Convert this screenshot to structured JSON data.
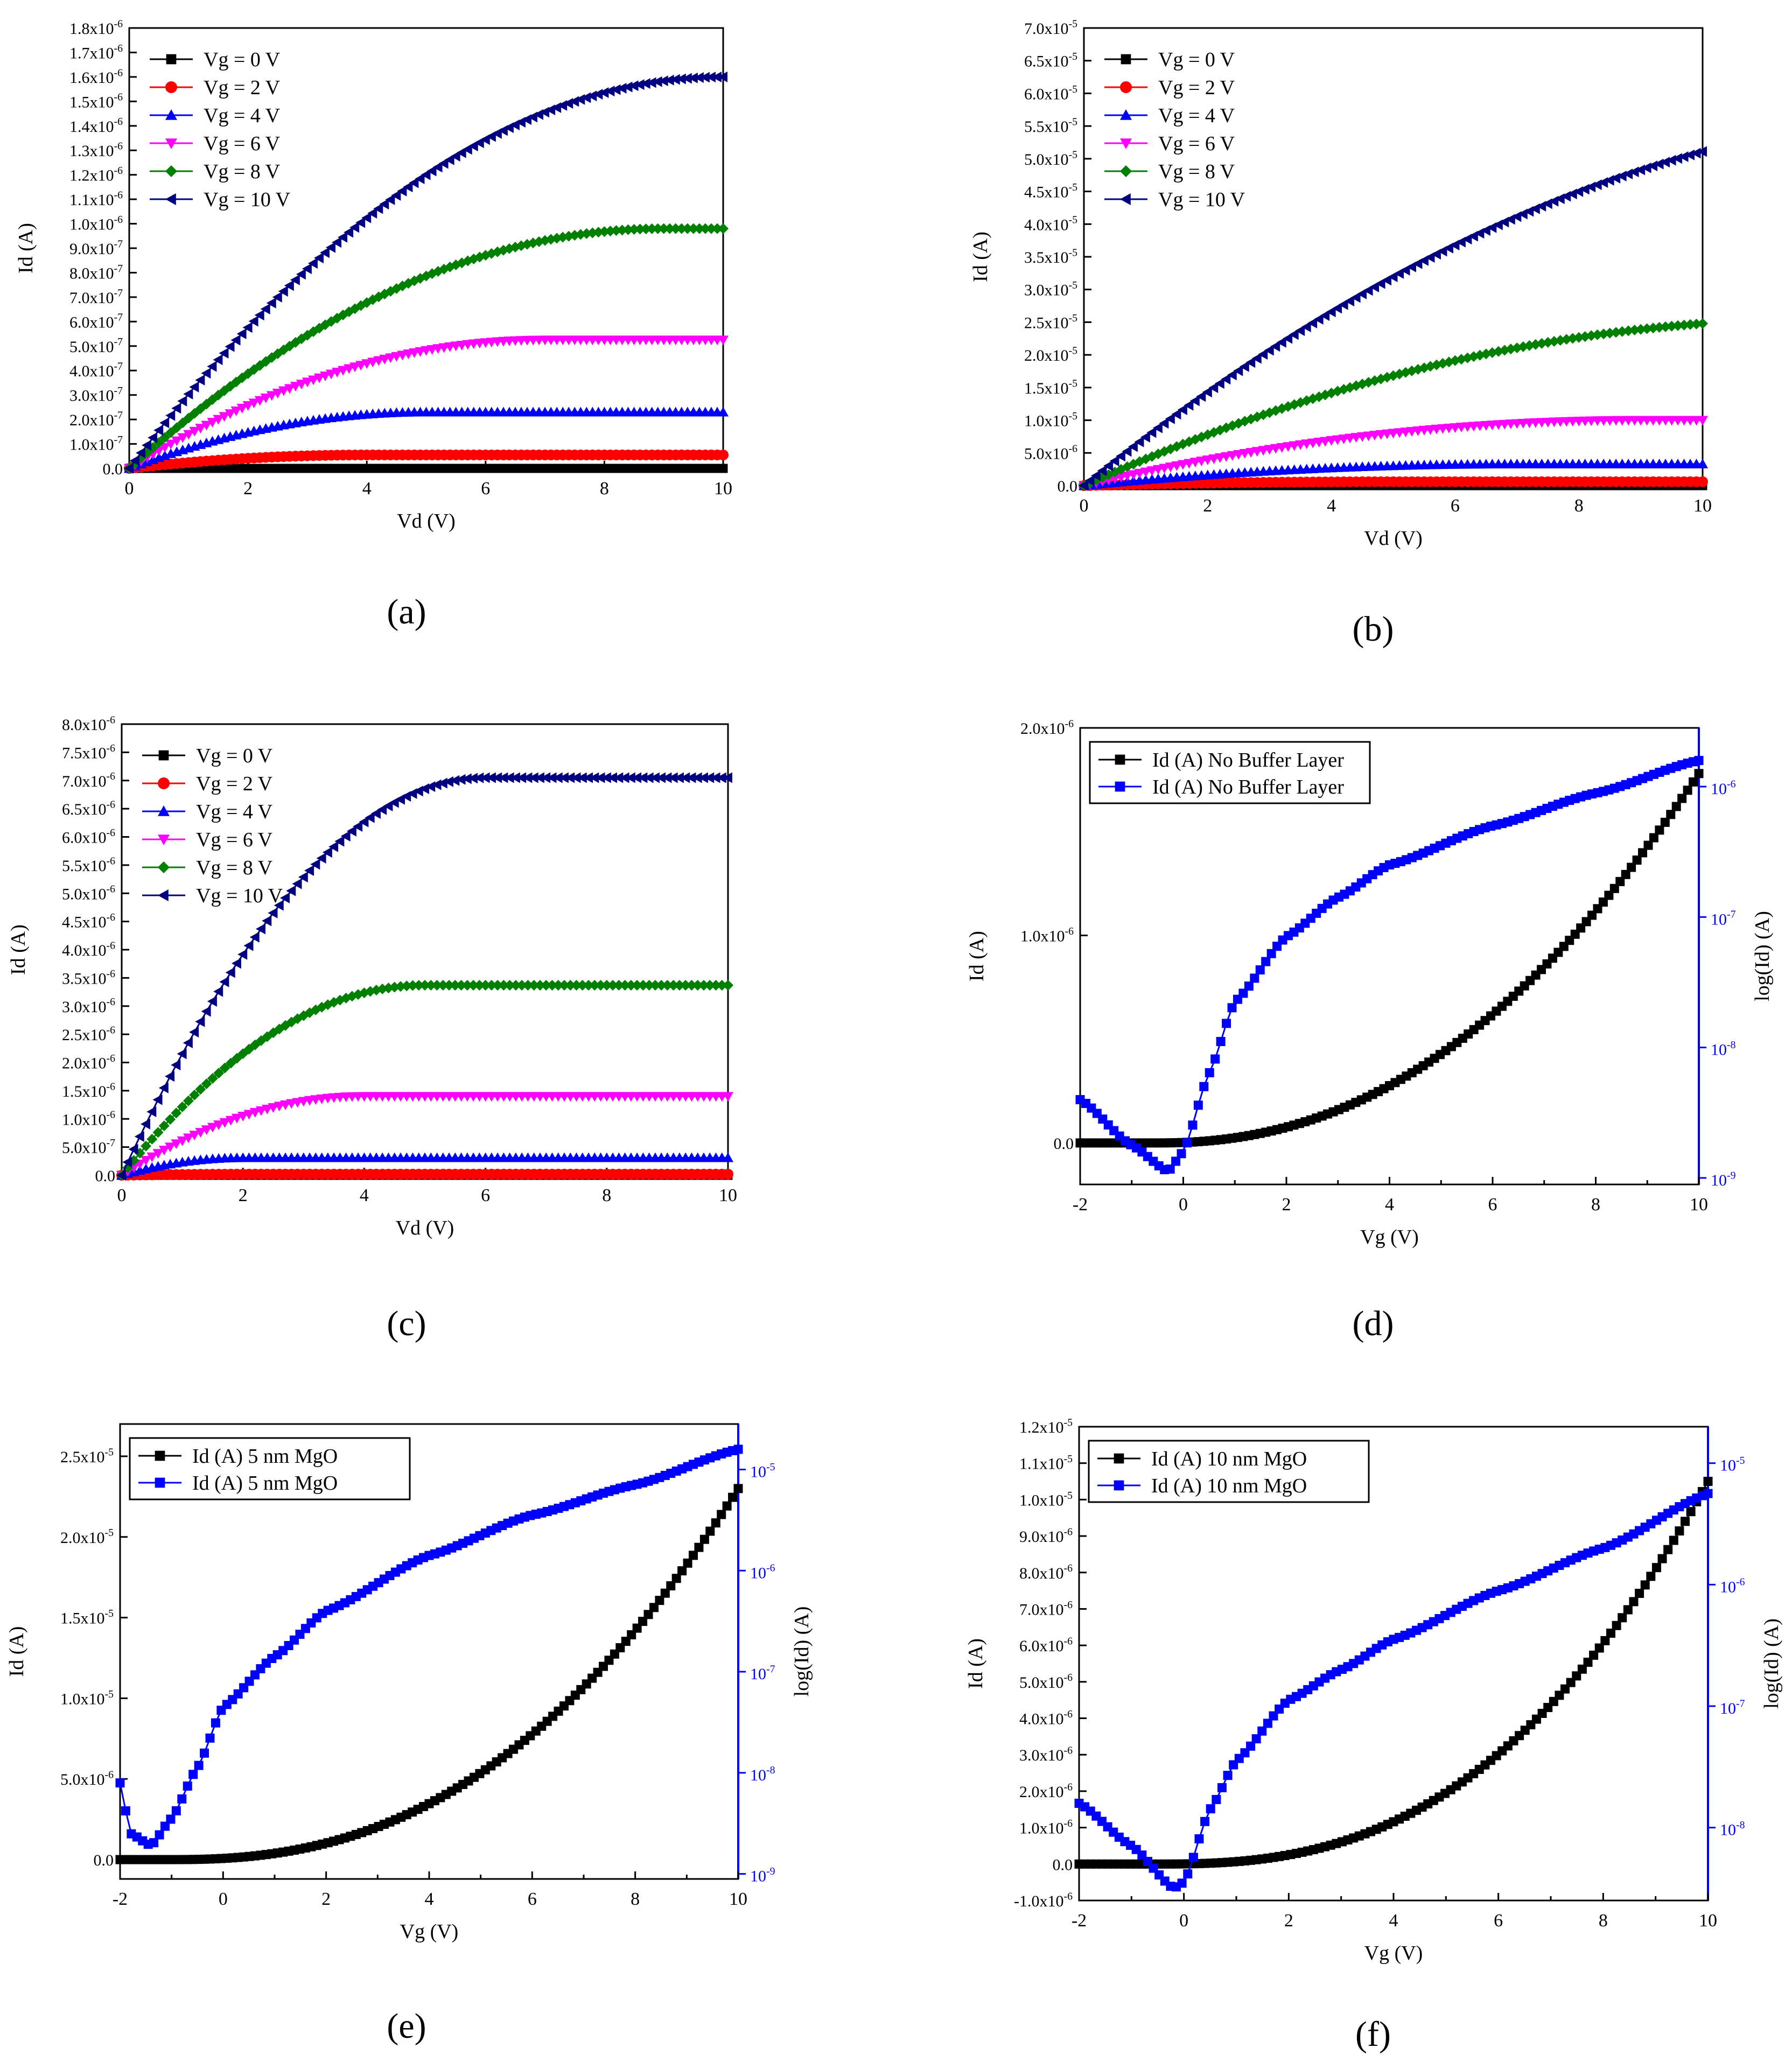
{
  "figure": {
    "panel_captions": [
      "(a)",
      "(b)",
      "(c)",
      "(d)",
      "(e)",
      "(f)"
    ]
  },
  "chart_data": [
    {
      "panel": "(a)",
      "type": "line",
      "xlabel": "Vd (V)",
      "ylabel": "Id (A)",
      "xlim": [
        0,
        10
      ],
      "ylim": [
        0,
        1.8e-06
      ],
      "x_ticks": [
        0,
        2,
        4,
        6,
        8,
        10
      ],
      "y_ticks": {
        "step": 1e-07,
        "count": 18
      },
      "y_tick_labels": [
        "0.0",
        "1.0x10^-7",
        "2.0x10^-7",
        "3.0x10^-7",
        "4.0x10^-7",
        "5.0x10^-7",
        "6.0x10^-7",
        "7.0x10^-7",
        "8.0x10^-7",
        "9.0x10^-7",
        "1.0x10^-6",
        "1.1x10^-6",
        "1.2x10^-6",
        "1.3x10^-6",
        "1.4x10^-6",
        "1.5x10^-6",
        "1.6x10^-6",
        "1.7x10^-6",
        "1.8x10^-6"
      ],
      "legend": "top-left",
      "series": [
        {
          "name": "Vg = 0 V",
          "color": "#000000",
          "marker": "square",
          "vsat": 1,
          "isat": 0
        },
        {
          "name": "Vg = 2 V",
          "color": "#ff0000",
          "marker": "circle",
          "vsat": 4,
          "isat": 5.5e-08
        },
        {
          "name": "Vg = 4 V",
          "color": "#0000ff",
          "marker": "triangle-up",
          "vsat": 5,
          "isat": 2.3e-07
        },
        {
          "name": "Vg = 6 V",
          "color": "#ff00ff",
          "marker": "triangle-down",
          "vsat": 7,
          "isat": 5.25e-07
        },
        {
          "name": "Vg = 8 V",
          "color": "#008000",
          "marker": "diamond",
          "vsat": 9,
          "isat": 9.8e-07
        },
        {
          "name": "Vg = 10 V",
          "color": "#000080",
          "marker": "triangle-left",
          "vsat": 10,
          "isat": 1.6e-06
        }
      ]
    },
    {
      "panel": "(b)",
      "type": "line",
      "xlabel": "Vd (V)",
      "ylabel": "Id (A)",
      "xlim": [
        0,
        10
      ],
      "ylim": [
        0,
        7e-05
      ],
      "x_ticks": [
        0,
        2,
        4,
        6,
        8,
        10
      ],
      "y_ticks": {
        "step": 5e-06,
        "count": 14
      },
      "y_tick_labels": [
        "0.0",
        "5.0x10^-6",
        "1.0x10^-5",
        "1.5x10^-5",
        "2.0x10^-5",
        "2.5x10^-5",
        "3.0x10^-5",
        "3.5x10^-5",
        "4.0x10^-5",
        "4.5x10^-5",
        "5.0x10^-5",
        "5.5x10^-5",
        "6.0x10^-5",
        "6.5x10^-5",
        "7.0x10^-5"
      ],
      "legend": "top-left",
      "series": [
        {
          "name": "Vg = 0 V",
          "color": "#000000",
          "marker": "square",
          "vsat": 1,
          "isat": 0
        },
        {
          "name": "Vg = 2 V",
          "color": "#ff0000",
          "marker": "circle",
          "vsat": 5,
          "isat": 6e-07
        },
        {
          "name": "Vg = 4 V",
          "color": "#0000ff",
          "marker": "triangle-up",
          "vsat": 7,
          "isat": 3.3e-06
        },
        {
          "name": "Vg = 6 V",
          "color": "#ff00ff",
          "marker": "triangle-down",
          "vsat": 9,
          "isat": 1e-05
        },
        {
          "name": "Vg = 8 V",
          "color": "#008000",
          "marker": "diamond",
          "vsat": 12,
          "isat": 2.55e-05
        },
        {
          "name": "Vg = 10 V",
          "color": "#000080",
          "marker": "triangle-left",
          "vsat": 15,
          "isat": 5.75e-05
        }
      ]
    },
    {
      "panel": "(c)",
      "type": "line",
      "xlabel": "Vd (V)",
      "ylabel": "Id (A)",
      "xlim": [
        0,
        10
      ],
      "ylim": [
        0,
        8e-06
      ],
      "x_ticks": [
        0,
        2,
        4,
        6,
        8,
        10
      ],
      "y_ticks": {
        "step": 5e-07,
        "count": 16
      },
      "y_tick_labels": [
        "0.0",
        "5.0x10^-7",
        "1.0x10^-6",
        "1.5x10^-6",
        "2.0x10^-6",
        "2.5x10^-6",
        "3.0x10^-6",
        "3.5x10^-6",
        "4.0x10^-6",
        "4.5x10^-6",
        "5.0x10^-6",
        "5.5x10^-6",
        "6.0x10^-6",
        "6.5x10^-6",
        "7.0x10^-6",
        "7.5x10^-6",
        "8.0x10^-6"
      ],
      "legend": "top-left",
      "series": [
        {
          "name": "Vg = 0 V",
          "color": "#000000",
          "marker": "square",
          "vsat": 1,
          "isat": 0
        },
        {
          "name": "Vg = 2 V",
          "color": "#ff0000",
          "marker": "circle",
          "vsat": 2,
          "isat": 2e-08
        },
        {
          "name": "Vg = 4 V",
          "color": "#0000ff",
          "marker": "triangle-up",
          "vsat": 2,
          "isat": 3.1e-07
        },
        {
          "name": "Vg = 6 V",
          "color": "#ff00ff",
          "marker": "triangle-down",
          "vsat": 4,
          "isat": 1.4e-06
        },
        {
          "name": "Vg = 8 V",
          "color": "#008000",
          "marker": "diamond",
          "vsat": 5,
          "isat": 3.37e-06
        },
        {
          "name": "Vg = 10 V",
          "color": "#000080",
          "marker": "triangle-left",
          "vsat": 6,
          "isat": 7.05e-06
        }
      ]
    },
    {
      "panel": "(d)",
      "type": "line",
      "xlabel": "Vg (V)",
      "ylabel": "Id (A)",
      "ylabel_right": "log(Id) (A)",
      "xlim": [
        -2,
        10
      ],
      "ylim": [
        -2e-07,
        2e-06
      ],
      "x_ticks": [
        -2,
        0,
        2,
        4,
        6,
        8,
        10
      ],
      "y_tick_labels": [
        "0.0",
        "1.0x10^-6",
        "2.0x10^-6"
      ],
      "y_tick_values": [
        0,
        1e-06,
        2e-06
      ],
      "ylim_right_log10": [
        -9.05,
        -5.55
      ],
      "y_right_tick_labels": [
        "10^-9",
        "10^-8",
        "10^-7",
        "10^-6"
      ],
      "legend": "top-left",
      "series": [
        {
          "name": "Id (A) No Buffer Layer",
          "color": "#000000",
          "marker": "square",
          "axis": "left",
          "vth": -0.5,
          "imax": 1.78e-06,
          "exp": 2.2
        },
        {
          "name": "Id (A) No Buffer Layer",
          "color": "#0000ff",
          "marker": "square",
          "axis": "right",
          "points": [
            [
              -2,
              -8.4
            ],
            [
              -1,
              -8.75
            ],
            [
              -0.3,
              -8.95
            ],
            [
              0,
              -8.8
            ],
            [
              0.5,
              -8.2
            ],
            [
              1,
              -7.65
            ],
            [
              2,
              -7.15
            ],
            [
              3,
              -6.85
            ],
            [
              4,
              -6.6
            ],
            [
              6,
              -6.3
            ],
            [
              8,
              -6.05
            ],
            [
              10,
              -5.8
            ]
          ]
        }
      ]
    },
    {
      "panel": "(e)",
      "type": "line",
      "xlabel": "Vg (V)",
      "ylabel": "Id (A)",
      "ylabel_right": "log(Id) (A)",
      "xlim": [
        -2,
        10
      ],
      "ylim": [
        -1.2e-06,
        2.7e-05
      ],
      "x_ticks": [
        -2,
        0,
        2,
        4,
        6,
        8,
        10
      ],
      "y_tick_labels": [
        "0.0",
        "5.0x10^-6",
        "1.0x10^-5",
        "1.5x10^-5",
        "2.0x10^-5",
        "2.5x10^-5"
      ],
      "y_tick_values": [
        0,
        5e-06,
        1e-05,
        1.5e-05,
        2e-05,
        2.5e-05
      ],
      "ylim_right_log10": [
        -9.05,
        -4.55
      ],
      "y_right_tick_labels": [
        "10^-9",
        "10^-8",
        "10^-7",
        "10^-6",
        "10^-5"
      ],
      "legend": "top-left",
      "series": [
        {
          "name": "Id (A) 5 nm MgO",
          "color": "#000000",
          "marker": "square",
          "axis": "left",
          "vth": -1.0,
          "imax": 2.3e-05,
          "exp": 2.4
        },
        {
          "name": "Id (A) 5 nm MgO",
          "color": "#0000ff",
          "marker": "square",
          "axis": "right",
          "points": [
            [
              -2,
              -8.1
            ],
            [
              -1.8,
              -8.6
            ],
            [
              -1.4,
              -8.72
            ],
            [
              -1.0,
              -8.45
            ],
            [
              -0.5,
              -7.95
            ],
            [
              0,
              -7.35
            ],
            [
              1,
              -6.85
            ],
            [
              2,
              -6.4
            ],
            [
              4,
              -5.85
            ],
            [
              6,
              -5.45
            ],
            [
              8,
              -5.15
            ],
            [
              10,
              -4.8
            ]
          ]
        }
      ]
    },
    {
      "panel": "(f)",
      "type": "line",
      "xlabel": "Vg (V)",
      "ylabel": "Id (A)",
      "ylabel_right": "log(Id) (A)",
      "xlim": [
        -2,
        10
      ],
      "ylim": [
        -1e-06,
        1.2e-05
      ],
      "x_ticks": [
        -2,
        0,
        2,
        4,
        6,
        8,
        10
      ],
      "y_ticks": {
        "step": 1e-06,
        "count": 13
      },
      "y_tick_labels": [
        "-1.0x10^-6",
        "0.0",
        "1.0x10^-6",
        "2.0x10^-6",
        "3.0x10^-6",
        "4.0x10^-6",
        "5.0x10^-6",
        "6.0x10^-6",
        "7.0x10^-6",
        "8.0x10^-6",
        "9.0x10^-6",
        "1.0x10^-5",
        "1.1x10^-5",
        "1.2x10^-5"
      ],
      "ylim_right_log10": [
        -8.6,
        -4.7
      ],
      "y_right_tick_labels": [
        "10^-8",
        "10^-7",
        "10^-6",
        "10^-5"
      ],
      "legend": "top-left",
      "series": [
        {
          "name": "Id (A) 10 nm MgO",
          "color": "#000000",
          "marker": "square",
          "axis": "left",
          "vth": -0.5,
          "imax": 1.05e-05,
          "exp": 2.6
        },
        {
          "name": "Id (A) 10 nm MgO",
          "color": "#0000ff",
          "marker": "square",
          "axis": "right",
          "points": [
            [
              -2,
              -7.8
            ],
            [
              -1,
              -8.15
            ],
            [
              -0.2,
              -8.5
            ],
            [
              0,
              -8.45
            ],
            [
              0.5,
              -7.85
            ],
            [
              1,
              -7.45
            ],
            [
              2,
              -6.95
            ],
            [
              3,
              -6.7
            ],
            [
              4,
              -6.45
            ],
            [
              6,
              -6.05
            ],
            [
              8,
              -5.7
            ],
            [
              10,
              -5.25
            ]
          ]
        }
      ]
    }
  ]
}
